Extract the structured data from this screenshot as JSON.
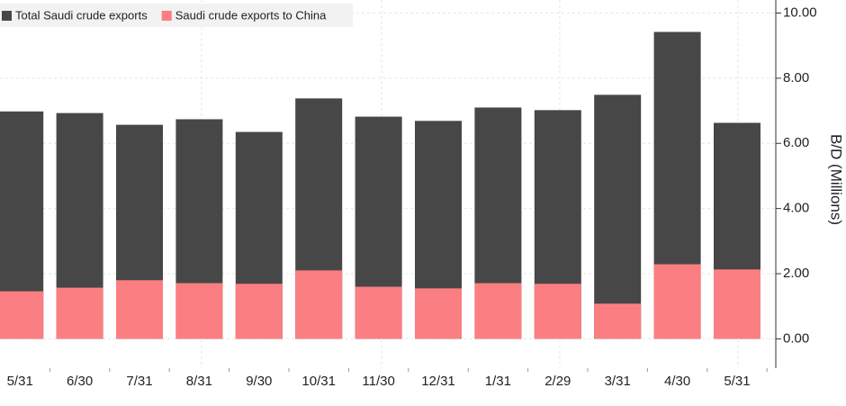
{
  "chart_data": {
    "type": "bar",
    "y_axis_label": "B/D (Millions)",
    "categories": [
      "5/31",
      "6/30",
      "7/31",
      "8/31",
      "9/30",
      "10/31",
      "11/30",
      "12/31",
      "1/31",
      "2/29",
      "3/31",
      "4/30",
      "5/31"
    ],
    "series": [
      {
        "name": "Total Saudi crude exports",
        "color": "#474747",
        "values": [
          6.98,
          6.93,
          6.57,
          6.74,
          6.35,
          7.38,
          6.82,
          6.69,
          7.1,
          7.02,
          7.49,
          9.42,
          6.63
        ]
      },
      {
        "name": "Saudi crude exports to China",
        "color": "#fb7f82",
        "values": [
          1.46,
          1.57,
          1.8,
          1.71,
          1.69,
          2.1,
          1.6,
          1.55,
          1.71,
          1.69,
          1.08,
          2.29,
          2.13
        ]
      }
    ],
    "ylim": [
      -0.9,
      10.4
    ],
    "yticks": [
      {
        "value": 0,
        "label": "0.00"
      },
      {
        "value": 2,
        "label": "2.00"
      },
      {
        "value": 4,
        "label": "4.00"
      },
      {
        "value": 6,
        "label": "6.00"
      },
      {
        "value": 8,
        "label": "8.00"
      },
      {
        "value": 10,
        "label": "10.00"
      }
    ],
    "grid": true,
    "legend": "top-left"
  }
}
